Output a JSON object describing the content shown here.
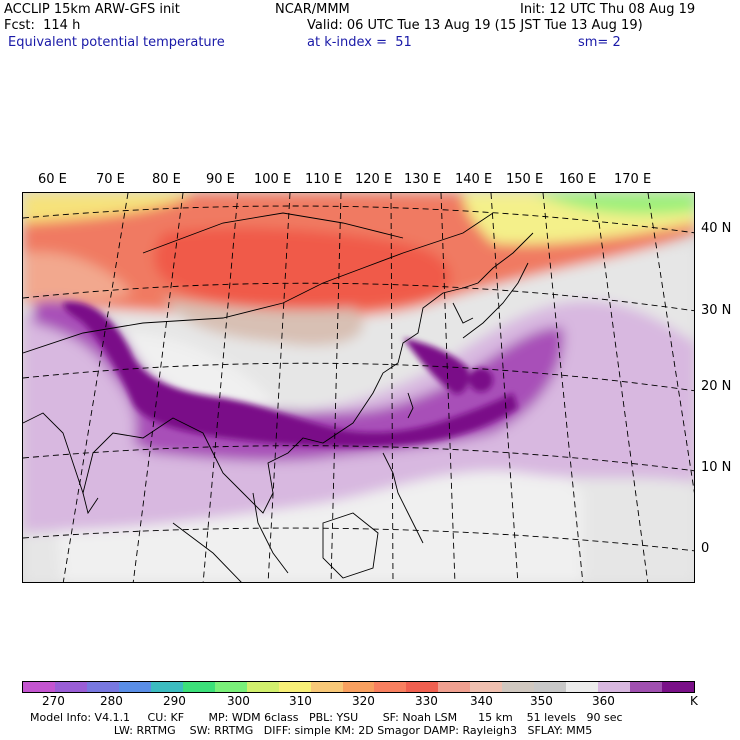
{
  "header": {
    "line1_left": "ACCLIP 15km ARW-GFS init",
    "line1_mid": "NCAR/MMM",
    "line1_right": "Init: 12 UTC Thu 08 Aug 19",
    "line2_left": "Fcst:  114 h",
    "line2_right": "Valid: 06 UTC Tue 13 Aug 19 (15 JST Tue 13 Aug 19)",
    "line3_left": "Equivalent potential temperature",
    "line3_mid": "at k-index =  51",
    "line3_right": "sm= 2"
  },
  "longitude_labels": [
    "60 E",
    "70 E",
    "80 E",
    "90 E",
    "100 E",
    "110 E",
    "120 E",
    "130 E",
    "140 E",
    "150 E",
    "160 E",
    "170 E"
  ],
  "latitude_labels": [
    "40 N",
    "30 N",
    "20 N",
    "10 N",
    "0"
  ],
  "colorbar": {
    "colors": [
      "#c455d0",
      "#9a5ed6",
      "#7878e0",
      "#5a8ee6",
      "#3cbcc0",
      "#3ce07a",
      "#7af07a",
      "#d2f06e",
      "#f8f078",
      "#f8c878",
      "#f8a060",
      "#f88060",
      "#f06050",
      "#f0a090",
      "#f0c0b0",
      "#d0c8c0",
      "#c8c8c8",
      "#ececec",
      "#d8b8e0",
      "#a050b0",
      "#7a1088"
    ],
    "tick_labels": [
      "270",
      "280",
      "290",
      "300",
      "310",
      "320",
      "330",
      "340",
      "350",
      "360"
    ],
    "unit": "K"
  },
  "footer": {
    "line1": "Model Info: V4.1.1     CU: KF       MP: WDM 6class   PBL: YSU       SF: Noah LSM      15 km    51 levels   90 sec",
    "line2": "                        LW: RRTMG    SW: RRTMG   DIFF: simple KM: 2D Smagor DAMP: Rayleigh3   SFLAY: MM5"
  }
}
